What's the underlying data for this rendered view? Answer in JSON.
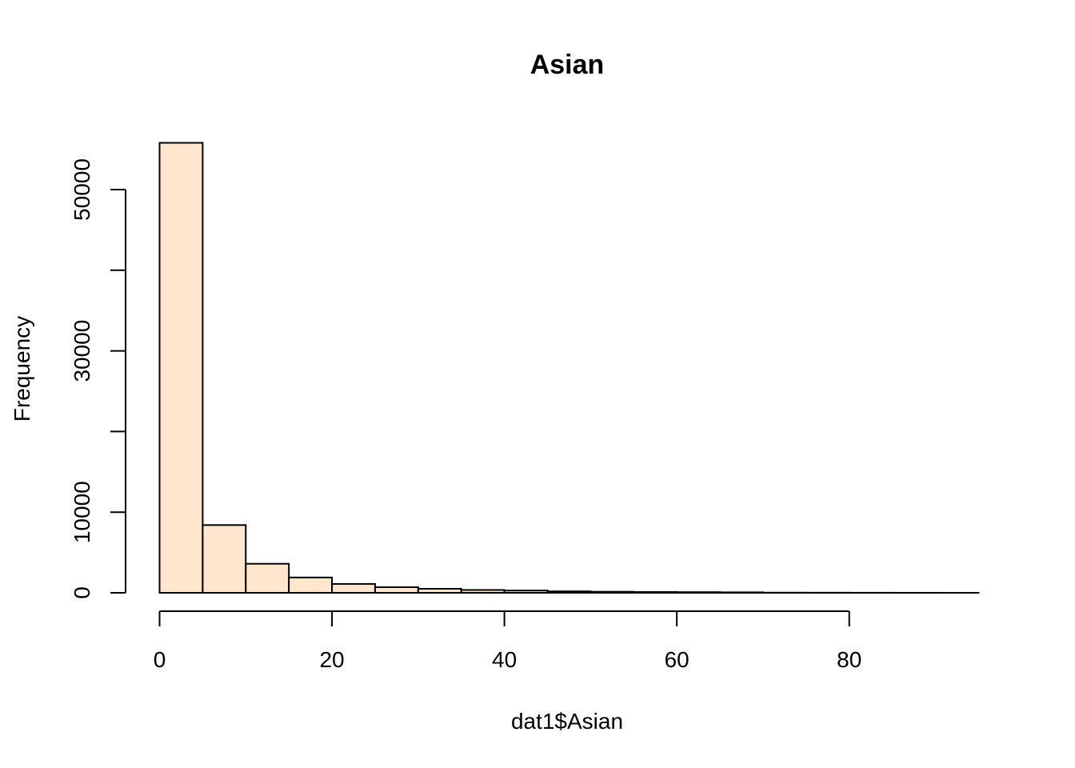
{
  "chart_data": {
    "type": "bar",
    "title": "Asian",
    "xlabel": "dat1$Asian",
    "ylabel": "Frequency",
    "bar_color": "#FFE6CC",
    "bin_edges": [
      0,
      5,
      10,
      15,
      20,
      25,
      30,
      35,
      40,
      45,
      50,
      55,
      60,
      65,
      70,
      75,
      80,
      85,
      90,
      95
    ],
    "values": [
      55800,
      8400,
      3600,
      1900,
      1100,
      700,
      500,
      350,
      280,
      180,
      130,
      100,
      80,
      60,
      20,
      15,
      10,
      5,
      3
    ],
    "xlim": [
      0,
      95
    ],
    "ylim": [
      0,
      55800
    ],
    "x_ticks": [
      0,
      20,
      40,
      60,
      80
    ],
    "x_tick_labels": [
      "0",
      "20",
      "40",
      "60",
      "80"
    ],
    "y_ticks": [
      0,
      10000,
      20000,
      30000,
      40000,
      50000
    ],
    "y_tick_labels": [
      "0",
      "10000",
      "",
      "30000",
      "",
      "50000"
    ],
    "grid": false,
    "legend": "none"
  }
}
